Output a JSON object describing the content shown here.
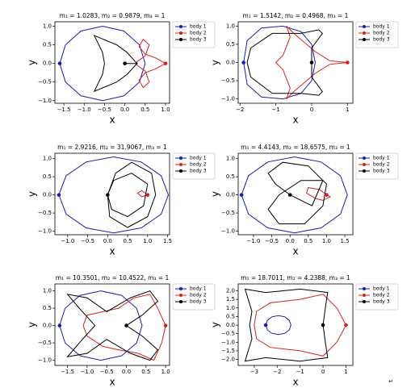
{
  "chart_data": [
    {
      "type": "line",
      "title": "m₁ = 1.0283, m₂ = 0.9879, m₃ = 1",
      "x_label": "x",
      "y_label": "y",
      "xlim": [
        -1.72,
        1.1
      ],
      "ylim": [
        -1.07,
        1.12
      ],
      "xticks": [
        {
          "value": -1.5,
          "label": "−1.5"
        },
        {
          "value": -1,
          "label": "−1.0"
        },
        {
          "value": -0.5,
          "label": "−0.5"
        },
        {
          "value": 0,
          "label": "0.0"
        },
        {
          "value": 0.5,
          "label": "0.5"
        },
        {
          "value": 1,
          "label": "1.0"
        }
      ],
      "yticks": [
        {
          "value": -1,
          "label": "−1.0"
        },
        {
          "value": -0.5,
          "label": "−0.5"
        },
        {
          "value": 0,
          "label": "0.0"
        },
        {
          "value": 0.5,
          "label": "0.5"
        },
        {
          "value": 1,
          "label": "1.0"
        }
      ],
      "series": [
        {
          "name": "body 1",
          "color": "#1c1cab",
          "x": [
            -1.6,
            -1.46,
            -1.08,
            -0.55,
            -0.02,
            0.36,
            0.5,
            0.36,
            -0.02,
            -0.55,
            -1.08,
            -1.46,
            -1.6
          ],
          "y": [
            0,
            0.5,
            0.87,
            1,
            0.87,
            0.5,
            0,
            -0.5,
            -0.87,
            -1,
            -0.87,
            -0.5,
            0
          ]
        },
        {
          "name": "body 2",
          "color": "#d62020",
          "x": [
            1,
            0.75,
            0.5,
            0.35,
            0.45,
            0.6,
            0.5,
            0.3,
            0.3,
            0.5,
            0.6,
            0.45,
            0.35,
            0.5,
            0.75,
            1
          ],
          "y": [
            0,
            0.15,
            0.25,
            0.45,
            0.65,
            0.5,
            0.2,
            0.05,
            -0.05,
            -0.2,
            -0.5,
            -0.65,
            -0.45,
            -0.25,
            -0.15,
            0
          ]
        },
        {
          "name": "body 3",
          "color": "#000000",
          "x": [
            0,
            0.3,
            0.05,
            -0.2,
            -0.75,
            -0.55,
            -0.5,
            -0.55,
            -0.75,
            -0.2,
            0.05,
            0.3,
            0
          ],
          "y": [
            0,
            0,
            0.3,
            0.5,
            0.75,
            0.3,
            0,
            -0.3,
            -0.75,
            -0.5,
            -0.3,
            0,
            0
          ]
        }
      ]
    },
    {
      "type": "line",
      "title": "m₁ = 1.5142, m₂ = 0.4968, m₃ = 1",
      "x_label": "x",
      "y_label": "y",
      "xlim": [
        -2.05,
        1.15
      ],
      "ylim": [
        -1.12,
        1.12
      ],
      "xticks": [
        {
          "value": -2,
          "label": "−2"
        },
        {
          "value": -1,
          "label": "−1"
        },
        0,
        1
      ],
      "yticks": [
        {
          "value": -1,
          "label": "−1.0"
        },
        {
          "value": -0.5,
          "label": "−0.5"
        },
        {
          "value": 0,
          "label": "0.0"
        },
        {
          "value": 0.5,
          "label": "0.5"
        },
        {
          "value": 1,
          "label": "1.0"
        }
      ],
      "series": [
        {
          "name": "body 1",
          "color": "#1c1cab",
          "x": [
            -1.9,
            -1.8,
            -1.4,
            -0.8,
            -0.3,
            0,
            0.1,
            0,
            -0.3,
            -0.8,
            -1.4,
            -1.8,
            -1.9
          ],
          "y": [
            0,
            0.6,
            0.95,
            1,
            0.85,
            0.5,
            0,
            -0.5,
            -0.85,
            -1,
            -0.95,
            -0.6,
            0
          ]
        },
        {
          "name": "body 2",
          "color": "#d62020",
          "x": [
            1,
            0.5,
            0.1,
            -0.5,
            -0.7,
            -0.6,
            -0.8,
            -1,
            -0.8,
            -0.6,
            -0.7,
            -0.5,
            0.1,
            0.5,
            1
          ],
          "y": [
            0,
            0.05,
            0.3,
            0.8,
            1,
            0.7,
            0.2,
            0,
            -0.2,
            -0.7,
            -1,
            -0.8,
            -0.3,
            -0.05,
            0
          ]
        },
        {
          "name": "body 3",
          "color": "#000000",
          "x": [
            0,
            0,
            0.3,
            0.2,
            -0.3,
            -1.1,
            -1.7,
            -1.8,
            -1.7,
            -1.1,
            -0.3,
            0.2,
            0.3,
            0,
            0
          ],
          "y": [
            0,
            0.4,
            0.8,
            0.9,
            0.8,
            0.8,
            0.4,
            0,
            -0.4,
            -0.85,
            -0.85,
            -0.9,
            -0.8,
            -0.4,
            0
          ]
        }
      ]
    },
    {
      "type": "line",
      "title": "m₁ = 2.9216, m₂ = 31.9067, m₃ = 1",
      "x_label": "x",
      "y_label": "y",
      "xlim": [
        -1.32,
        1.55
      ],
      "ylim": [
        -1.1,
        1.15
      ],
      "xticks": [
        {
          "value": -1,
          "label": "−1.0"
        },
        {
          "value": -0.5,
          "label": "−0.5"
        },
        {
          "value": 0,
          "label": "0.0"
        },
        0.5,
        {
          "value": 1,
          "label": "1.0"
        },
        1.5
      ],
      "yticks": [
        {
          "value": -1,
          "label": "−1.0"
        },
        {
          "value": -0.5,
          "label": "−0.5"
        },
        {
          "value": 0,
          "label": "0.0"
        },
        0.5,
        {
          "value": 1,
          "label": "1.0"
        }
      ],
      "series": [
        {
          "name": "body 1",
          "color": "#1c1cab",
          "x": [
            -1.22,
            -1.04,
            -0.54,
            0.15,
            0.84,
            1.34,
            1.52,
            1.34,
            0.84,
            0.15,
            -0.54,
            -1.04,
            -1.22
          ],
          "y": [
            0,
            0.53,
            0.91,
            1.05,
            0.91,
            0.53,
            0,
            -0.53,
            -0.91,
            -1.05,
            -0.91,
            -0.53,
            0
          ]
        },
        {
          "name": "body 2",
          "color": "#d62020",
          "x": [
            1,
            0.85,
            0.75,
            0.85,
            1
          ],
          "y": [
            0,
            0.12,
            0.05,
            -0.05,
            0
          ]
        },
        {
          "name": "body 3",
          "color": "#000000",
          "x": [
            0,
            0.2,
            0.6,
            1.1,
            1.2,
            1,
            0.5,
            0.05,
            0,
            0.15,
            0.6,
            1,
            0.9,
            0.5,
            0.1,
            0
          ],
          "y": [
            0,
            0.6,
            0.9,
            0.6,
            0,
            -0.6,
            -0.9,
            -0.6,
            0,
            0.4,
            0.6,
            0.3,
            -0.3,
            -0.6,
            -0.4,
            0
          ]
        }
      ]
    },
    {
      "type": "line",
      "title": "m₁ = 4.4143, m₂ = 18.6575, m₃ = 1",
      "x_label": "x",
      "y_label": "y",
      "xlim": [
        -1.42,
        1.72
      ],
      "ylim": [
        -1.1,
        1.15
      ],
      "xticks": [
        {
          "value": -1,
          "label": "−1.0"
        },
        {
          "value": -0.5,
          "label": "−0.5"
        },
        {
          "value": 0,
          "label": "0.0"
        },
        0.5,
        {
          "value": 1,
          "label": "1.0"
        },
        1.5
      ],
      "yticks": [
        {
          "value": -1,
          "label": "−1.0"
        },
        {
          "value": -0.5,
          "label": "−0.5"
        },
        {
          "value": 0,
          "label": "0.0"
        },
        0.5,
        {
          "value": 1,
          "label": "1.0"
        }
      ],
      "series": [
        {
          "name": "body 1",
          "color": "#1c1cab",
          "x": [
            -1.33,
            -1.14,
            -0.61,
            0.12,
            0.85,
            1.38,
            1.57,
            1.38,
            0.85,
            0.12,
            -0.61,
            -1.14,
            -1.33
          ],
          "y": [
            0,
            0.53,
            0.91,
            1.05,
            0.91,
            0.53,
            0,
            -0.53,
            -0.91,
            -1.05,
            -0.91,
            -0.53,
            0
          ]
        },
        {
          "name": "body 2",
          "color": "#d62020",
          "x": [
            1,
            0.8,
            0.5,
            0.45,
            0.7,
            0.9,
            1.1,
            1
          ],
          "y": [
            0,
            0.15,
            0.2,
            0.05,
            -0.1,
            -0.15,
            -0.05,
            0
          ]
        },
        {
          "name": "body 3",
          "color": "#000000",
          "x": [
            0,
            -0.4,
            -0.6,
            -0.2,
            0.5,
            1,
            0.9,
            0.4,
            -0.3,
            -0.6,
            -0.3,
            0.3,
            0.9,
            0.6,
            0
          ],
          "y": [
            0,
            0.3,
            0.6,
            0.9,
            0.8,
            0.3,
            -0.3,
            -0.8,
            -0.8,
            -0.4,
            0,
            0.4,
            0.4,
            -0.3,
            0
          ]
        }
      ]
    },
    {
      "type": "line",
      "title": "m₁ = 10.3501, m₂ = 10.4522, m₃ = 1",
      "x_label": "x",
      "y_label": "y",
      "xlim": [
        -1.82,
        1.1
      ],
      "ylim": [
        -1.15,
        1.2
      ],
      "xticks": [
        {
          "value": -1.5,
          "label": "−1.5"
        },
        {
          "value": -1,
          "label": "−1.0"
        },
        {
          "value": -0.5,
          "label": "−0.5"
        },
        {
          "value": 0,
          "label": "0.0"
        },
        0.5,
        {
          "value": 1,
          "label": "1.0"
        }
      ],
      "yticks": [
        {
          "value": -1,
          "label": "−1.0"
        },
        {
          "value": -0.5,
          "label": "−0.5"
        },
        {
          "value": 0,
          "label": "0.0"
        },
        0.5,
        {
          "value": 1,
          "label": "1.0"
        }
      ],
      "series": [
        {
          "name": "body 1",
          "color": "#1c1cab",
          "x": [
            -1.7,
            -1.56,
            -1.18,
            -0.65,
            -0.12,
            0.26,
            0.4,
            0.26,
            -0.12,
            -0.65,
            -1.18,
            -1.56,
            -1.7
          ],
          "y": [
            0,
            0.5,
            0.87,
            1,
            0.87,
            0.5,
            0,
            -0.5,
            -0.87,
            -1,
            -0.87,
            -0.5,
            0
          ]
        },
        {
          "name": "body 2",
          "color": "#d62020",
          "x": [
            1,
            0.8,
            0.6,
            0.2,
            -0.2,
            -0.6,
            -1,
            -1.1,
            -1,
            -0.6,
            -0.2,
            0.3,
            0.7,
            0.9,
            1
          ],
          "y": [
            0,
            0.5,
            0.9,
            0.8,
            0.5,
            0.4,
            0.3,
            0,
            -0.3,
            -0.6,
            -0.7,
            -0.8,
            -1,
            -0.5,
            0
          ]
        },
        {
          "name": "body 3",
          "color": "#000000",
          "x": [
            0,
            0.4,
            0.8,
            0.6,
            0.1,
            -0.5,
            -1,
            -1.5,
            -1.2,
            -0.8,
            -1.2,
            -1.5,
            -1,
            -0.5,
            0.1,
            0.6,
            0.8,
            0.4,
            0
          ],
          "y": [
            0,
            0.3,
            0.7,
            1,
            0.8,
            0.4,
            0.8,
            0.9,
            0.5,
            0,
            -0.5,
            -0.9,
            -0.8,
            -0.4,
            -0.8,
            -1,
            -0.7,
            -0.3,
            0
          ]
        }
      ]
    },
    {
      "type": "line",
      "title": "m₁ = 18.7011, m₂ = 4.2388, m₃ = 1",
      "x_label": "x",
      "y_label": "y",
      "xlim": [
        -3.7,
        1.3
      ],
      "ylim": [
        -2.35,
        2.4
      ],
      "xticks": [
        {
          "value": -3,
          "label": "−3"
        },
        {
          "value": -2,
          "label": "−2"
        },
        {
          "value": -1,
          "label": "−1"
        },
        0,
        1
      ],
      "yticks": [
        {
          "value": -2,
          "label": "−2.0"
        },
        {
          "value": -1.5,
          "label": "−1.5"
        },
        {
          "value": -1,
          "label": "−1.0"
        },
        {
          "value": -0.5,
          "label": "−0.5"
        },
        {
          "value": 0,
          "label": "0.0"
        },
        0.5,
        {
          "value": 1,
          "label": "1.0"
        },
        1.5,
        {
          "value": 2,
          "label": "2.0"
        }
      ],
      "series": [
        {
          "name": "body 1",
          "color": "#1c1cab",
          "x": [
            -2.5,
            -2.43,
            -2.23,
            -1.95,
            -1.67,
            -1.47,
            -1.4,
            -1.47,
            -1.67,
            -1.95,
            -2.23,
            -2.43,
            -2.5
          ],
          "y": [
            0,
            0.28,
            0.48,
            0.55,
            0.48,
            0.28,
            0,
            -0.28,
            -0.48,
            -0.55,
            -0.48,
            -0.28,
            0
          ]
        },
        {
          "name": "body 2",
          "color": "#d62020",
          "x": [
            1,
            0.6,
            0,
            -1,
            -2.3,
            -2.9,
            -3,
            -2.9,
            -2.3,
            -1,
            0,
            0.6,
            1
          ],
          "y": [
            0,
            1,
            1.8,
            1.5,
            1.3,
            0.8,
            0,
            -0.8,
            -1.3,
            -1.5,
            -1.8,
            -1,
            0
          ]
        },
        {
          "name": "body 3",
          "color": "#000000",
          "x": [
            0,
            0.1,
            0.2,
            -1,
            -2.5,
            -3.4,
            -3.1,
            -3.2,
            -3.1,
            -3.4,
            -2.5,
            -1,
            0.2,
            0.1,
            0
          ],
          "y": [
            0,
            1,
            1.9,
            2.1,
            1.9,
            2.1,
            0.8,
            0,
            -0.8,
            -2.1,
            -1.9,
            -2.1,
            -1.9,
            -1,
            0
          ]
        }
      ]
    }
  ],
  "page_mark": "↵"
}
